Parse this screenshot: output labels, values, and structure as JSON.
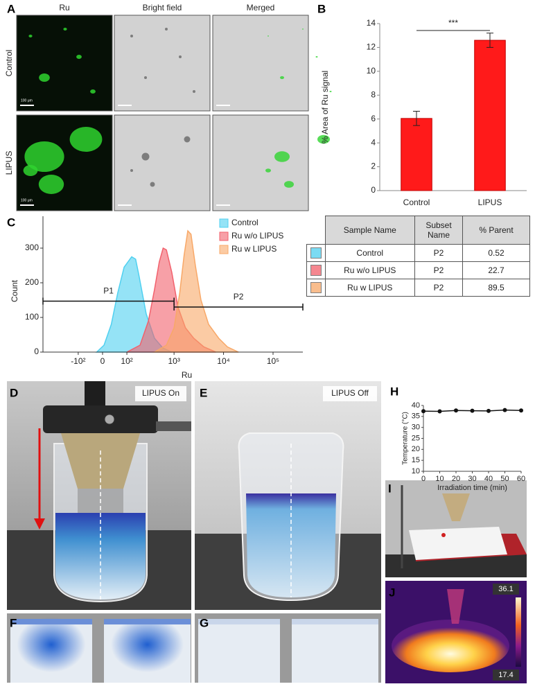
{
  "panels": {
    "a": "A",
    "b": "B",
    "c": "C",
    "d": "D",
    "e": "E",
    "f": "F",
    "g": "G",
    "h": "H",
    "i": "I",
    "j": "J"
  },
  "microscopy": {
    "columns": [
      "Ru",
      "Bright field",
      "Merged"
    ],
    "rows": [
      "Control",
      "LIPUS"
    ],
    "scale_bar": "100 μm"
  },
  "chart_data": [
    {
      "type": "bar",
      "ylabel": "% Area of Ru signal",
      "categories": [
        "Control",
        "LIPUS"
      ],
      "values": [
        6.05,
        12.6
      ],
      "errors": [
        0.6,
        0.6
      ],
      "color": "#ff1a1a",
      "ylim": [
        0,
        14
      ],
      "yticks": [
        0,
        2,
        4,
        6,
        8,
        10,
        12,
        14
      ],
      "significance": "***"
    },
    {
      "type": "area",
      "xlabel": "Ru",
      "ylabel": "Count",
      "xscale": "asinh",
      "xlim": [
        -573,
        400000
      ],
      "xticks": [
        {
          "value": -100,
          "label": "-10²"
        },
        0,
        {
          "value": 100,
          "label": "10²"
        },
        {
          "value": 1000,
          "label": "10³"
        },
        {
          "value": 10000,
          "label": "10⁴"
        },
        {
          "value": 100000,
          "label": "10⁵"
        }
      ],
      "ylim": [
        0,
        392
      ],
      "yticks": [
        0,
        100,
        200,
        300
      ],
      "legend": "upper right",
      "series": [
        {
          "name": "Control",
          "color": "#4fd0f0",
          "x": [
            -20,
            5,
            30,
            55,
            85,
            130,
            160,
            190,
            270,
            400,
            590,
            900
          ],
          "values": [
            0,
            20,
            80,
            170,
            245,
            275,
            268,
            220,
            110,
            40,
            12,
            0
          ]
        },
        {
          "name": "Ru w/o LIPUS",
          "color": "#f2606c",
          "x": [
            100,
            200,
            300,
            400,
            500,
            600,
            700,
            900,
            1200,
            1700,
            2500,
            4000,
            7000
          ],
          "values": [
            0,
            20,
            90,
            180,
            260,
            300,
            295,
            230,
            130,
            70,
            40,
            15,
            0
          ]
        },
        {
          "name": "Ru w LIPUS",
          "color": "#f8a868",
          "x": [
            400,
            700,
            1000,
            1300,
            1600,
            1900,
            2200,
            2700,
            3500,
            5000,
            8000,
            12000,
            20000
          ],
          "values": [
            0,
            20,
            70,
            170,
            280,
            350,
            340,
            250,
            150,
            80,
            40,
            15,
            0
          ]
        }
      ],
      "gates": [
        {
          "name": "P1",
          "x": [
            -573,
            1000
          ],
          "level": 147
        },
        {
          "name": "P2",
          "x": [
            1000,
            400000
          ],
          "level": 130
        }
      ]
    },
    {
      "type": "line",
      "xlabel": "Irradiation time (min)",
      "ylabel": "Temperature (°C)",
      "x": [
        0,
        10,
        20,
        30,
        40,
        50,
        60
      ],
      "values": [
        37.4,
        37.3,
        37.7,
        37.6,
        37.5,
        37.9,
        37.7
      ],
      "color": "#111",
      "xlim": [
        0,
        60
      ],
      "xticks": [
        0,
        10,
        20,
        30,
        40,
        50,
        60
      ],
      "ylim": [
        10,
        40
      ],
      "yticks": [
        10,
        15,
        20,
        25,
        30,
        35,
        40
      ]
    }
  ],
  "table": {
    "header": [
      "Sample Name",
      "Subset Name",
      "% Parent"
    ],
    "rows": [
      [
        "Control",
        "P2",
        0.52
      ],
      [
        "Ru w/o LIPUS",
        "P2",
        22.7
      ],
      [
        "Ru w LIPUS",
        "P2",
        89.5
      ]
    ]
  },
  "photos": {
    "d_label": "LIPUS On",
    "e_label": "LIPUS Off",
    "j_max": "36.1",
    "j_min": "17.4"
  }
}
